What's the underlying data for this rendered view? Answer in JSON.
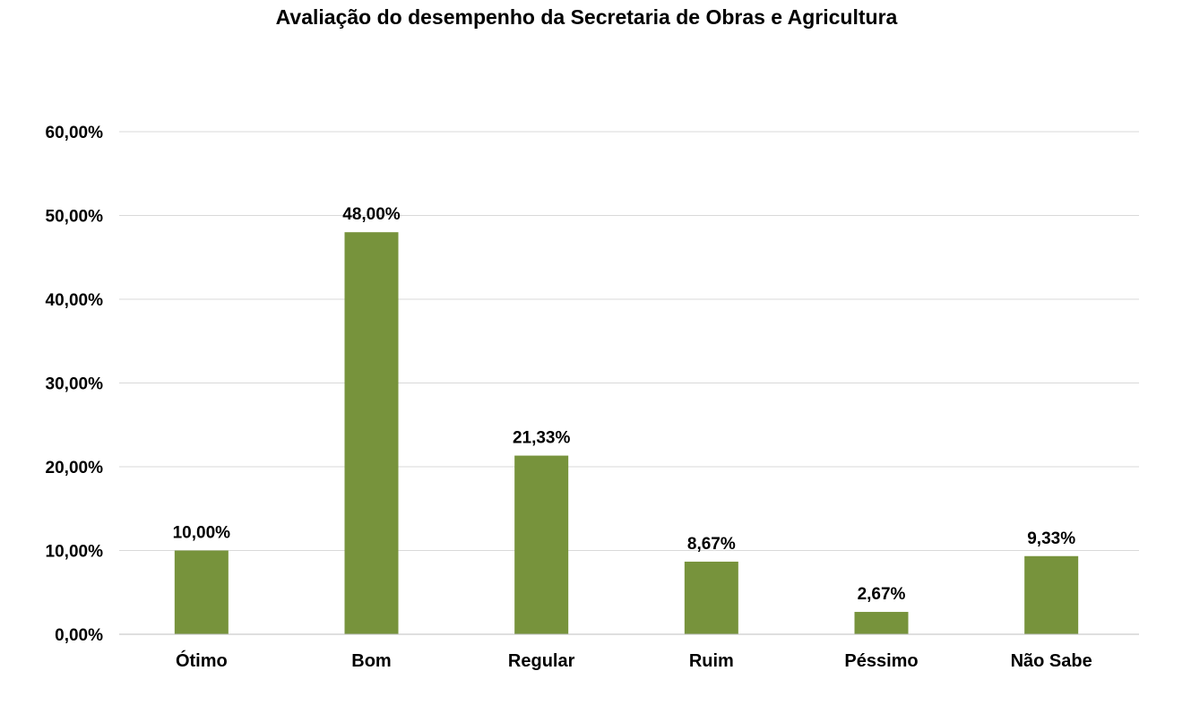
{
  "chart_data": {
    "type": "bar",
    "title": "Avaliação do desempenho da Secretaria de Obras e Agricultura",
    "categories": [
      "Ótimo",
      "Bom",
      "Regular",
      "Ruim",
      "Péssimo",
      "Não Sabe"
    ],
    "values": [
      10.0,
      48.0,
      21.33,
      8.67,
      2.67,
      9.33
    ],
    "data_labels": [
      "10,00%",
      "48,00%",
      "21,33%",
      "8,67%",
      "2,67%",
      "9,33%"
    ],
    "ylim": [
      0,
      60
    ],
    "yticks": [
      0,
      10,
      20,
      30,
      40,
      50,
      60
    ],
    "ytick_labels": [
      "0,00%",
      "10,00%",
      "20,00%",
      "30,00%",
      "40,00%",
      "50,00%",
      "60,00%"
    ],
    "xlabel": "",
    "ylabel": "",
    "grid": true,
    "legend": "none",
    "bar_color": "#77933c",
    "grid_color": "#d9d9d9",
    "axis_color": "#bfbfbf"
  }
}
